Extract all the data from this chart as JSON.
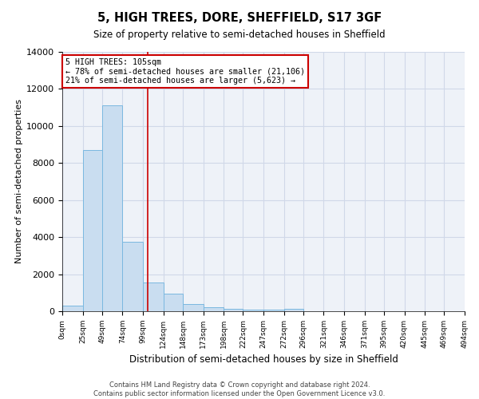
{
  "title_line1": "5, HIGH TREES, DORE, SHEFFIELD, S17 3GF",
  "title_line2": "Size of property relative to semi-detached houses in Sheffield",
  "xlabel": "Distribution of semi-detached houses by size in Sheffield",
  "ylabel": "Number of semi-detached properties",
  "footnote": "Contains HM Land Registry data © Crown copyright and database right 2024.\nContains public sector information licensed under the Open Government Licence v3.0.",
  "bar_edges": [
    0,
    25,
    49,
    74,
    99,
    124,
    148,
    173,
    198,
    222,
    247,
    272,
    296,
    321,
    346,
    371,
    395,
    420,
    445,
    469,
    494
  ],
  "bar_heights": [
    300,
    8700,
    11100,
    3750,
    1550,
    950,
    380,
    220,
    150,
    100,
    80,
    110,
    0,
    0,
    0,
    0,
    0,
    0,
    0,
    0
  ],
  "bar_color": "#c9ddf0",
  "bar_edgecolor": "#7ab8e0",
  "grid_color": "#d0d8e8",
  "background_color": "#eef2f8",
  "vline_x": 105,
  "vline_color": "#cc0000",
  "annotation_line1": "5 HIGH TREES: 105sqm",
  "annotation_line2": "← 78% of semi-detached houses are smaller (21,106)",
  "annotation_line3": "21% of semi-detached houses are larger (5,623) →",
  "annotation_box_edgecolor": "#cc0000",
  "ylim": [
    0,
    14000
  ],
  "yticks": [
    0,
    2000,
    4000,
    6000,
    8000,
    10000,
    12000,
    14000
  ],
  "tick_labels": [
    "0sqm",
    "25sqm",
    "49sqm",
    "74sqm",
    "99sqm",
    "124sqm",
    "148sqm",
    "173sqm",
    "198sqm",
    "222sqm",
    "247sqm",
    "272sqm",
    "296sqm",
    "321sqm",
    "346sqm",
    "371sqm",
    "395sqm",
    "420sqm",
    "445sqm",
    "469sqm",
    "494sqm"
  ]
}
